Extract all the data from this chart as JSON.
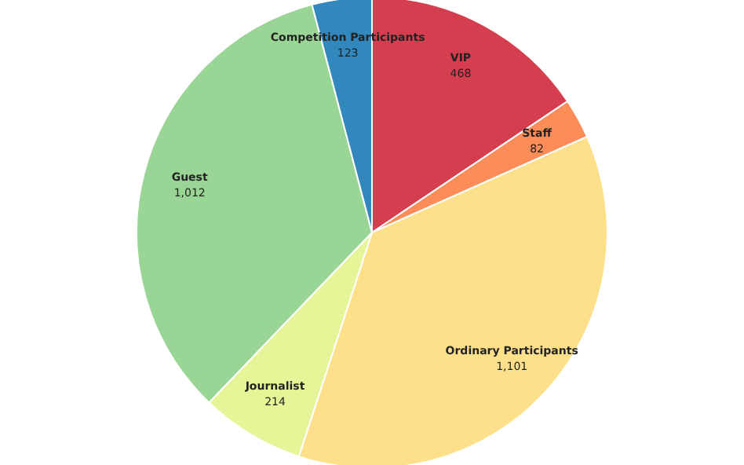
{
  "chart_data": {
    "type": "pie",
    "categories": [
      "VIP",
      "Staff",
      "Ordinary Participants",
      "Journalist",
      "Guest",
      "Competition Participants"
    ],
    "values": [
      468,
      82,
      1101,
      214,
      1012,
      123
    ],
    "colors": [
      "#d53e4f",
      "#fc8d59",
      "#fee08b",
      "#e6f598",
      "#99d594",
      "#3288bd"
    ],
    "value_labels": [
      "468",
      "82",
      "1,101",
      "214",
      "1,012",
      "123"
    ]
  }
}
